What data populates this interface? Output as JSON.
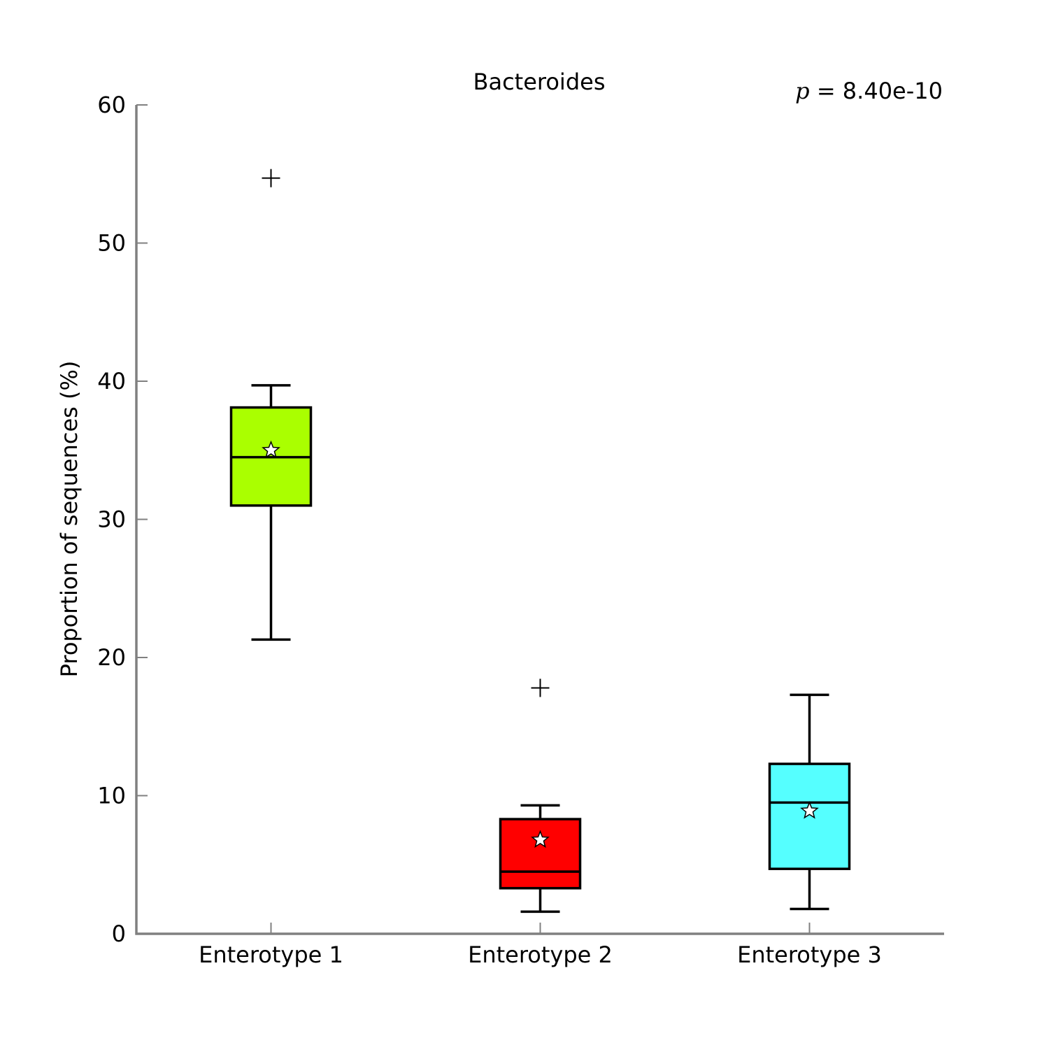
{
  "chart_data": {
    "type": "boxplot",
    "title": "Bacteroides",
    "annotation": {
      "variable": "p",
      "text": " = 8.40e-10"
    },
    "xlabel": "",
    "ylabel": "Proportion of sequences (%)",
    "ylim": [
      0,
      60
    ],
    "yticks": [
      0,
      10,
      20,
      30,
      40,
      50,
      60
    ],
    "grid": false,
    "legend": "none",
    "colors": {
      "axis": "#808080",
      "box_edge": "#000000",
      "mean_marker_fill": "#ffffff"
    },
    "categories": [
      "Enterotype 1",
      "Enterotype 2",
      "Enterotype 3"
    ],
    "boxes": [
      {
        "category": "Enterotype 1",
        "color": "#aaff00",
        "whisker_low": 21.3,
        "q1": 31.0,
        "median": 34.5,
        "q3": 38.1,
        "whisker_high": 39.7,
        "mean": 35.0,
        "outliers": [
          54.7
        ]
      },
      {
        "category": "Enterotype 2",
        "color": "#ff0000",
        "whisker_low": 1.6,
        "q1": 3.3,
        "median": 4.5,
        "q3": 8.3,
        "whisker_high": 9.3,
        "mean": 6.8,
        "outliers": [
          17.8
        ]
      },
      {
        "category": "Enterotype 3",
        "color": "#55ffff",
        "whisker_low": 1.8,
        "q1": 4.7,
        "median": 9.5,
        "q3": 12.3,
        "whisker_high": 17.3,
        "mean": 8.9,
        "outliers": []
      }
    ]
  }
}
